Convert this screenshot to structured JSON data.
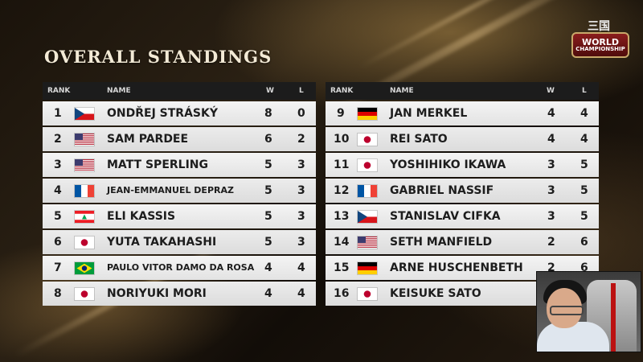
{
  "title": "OVERALL STANDINGS",
  "logo": {
    "line1": "WORLD",
    "line2": "CHAMPIONSHIP",
    "glyph": "三国"
  },
  "columns": {
    "rank": "RANK",
    "name": "NAME",
    "w": "W",
    "l": "L"
  },
  "left": [
    {
      "rank": "1",
      "name": "ONDŘEJ STRÁSKÝ",
      "w": "8",
      "l": "0",
      "flag": "cz"
    },
    {
      "rank": "2",
      "name": "SAM PARDEE",
      "w": "6",
      "l": "2",
      "flag": "us"
    },
    {
      "rank": "3",
      "name": "MATT SPERLING",
      "w": "5",
      "l": "3",
      "flag": "us"
    },
    {
      "rank": "4",
      "name": "JEAN-EMMANUEL DEPRAZ",
      "w": "5",
      "l": "3",
      "flag": "fr"
    },
    {
      "rank": "5",
      "name": "ELI KASSIS",
      "w": "5",
      "l": "3",
      "flag": "lb"
    },
    {
      "rank": "6",
      "name": "YUTA TAKAHASHI",
      "w": "5",
      "l": "3",
      "flag": "jp"
    },
    {
      "rank": "7",
      "name": "PAULO VITOR DAMO DA ROSA",
      "w": "4",
      "l": "4",
      "flag": "br"
    },
    {
      "rank": "8",
      "name": "NORIYUKI MORI",
      "w": "4",
      "l": "4",
      "flag": "jp"
    }
  ],
  "right": [
    {
      "rank": "9",
      "name": "JAN MERKEL",
      "w": "4",
      "l": "4",
      "flag": "de"
    },
    {
      "rank": "10",
      "name": "REI SATO",
      "w": "4",
      "l": "4",
      "flag": "jp"
    },
    {
      "rank": "11",
      "name": "YOSHIHIKO IKAWA",
      "w": "3",
      "l": "5",
      "flag": "jp"
    },
    {
      "rank": "12",
      "name": "GABRIEL NASSIF",
      "w": "3",
      "l": "5",
      "flag": "fr"
    },
    {
      "rank": "13",
      "name": "STANISLAV CIFKA",
      "w": "3",
      "l": "5",
      "flag": "cz"
    },
    {
      "rank": "14",
      "name": "SETH MANFIELD",
      "w": "2",
      "l": "6",
      "flag": "us"
    },
    {
      "rank": "15",
      "name": "ARNE HUSCHENBETH",
      "w": "2",
      "l": "6",
      "flag": "de"
    },
    {
      "rank": "16",
      "name": "KEISUKE SATO",
      "w": "",
      "l": "",
      "flag": "jp"
    }
  ]
}
